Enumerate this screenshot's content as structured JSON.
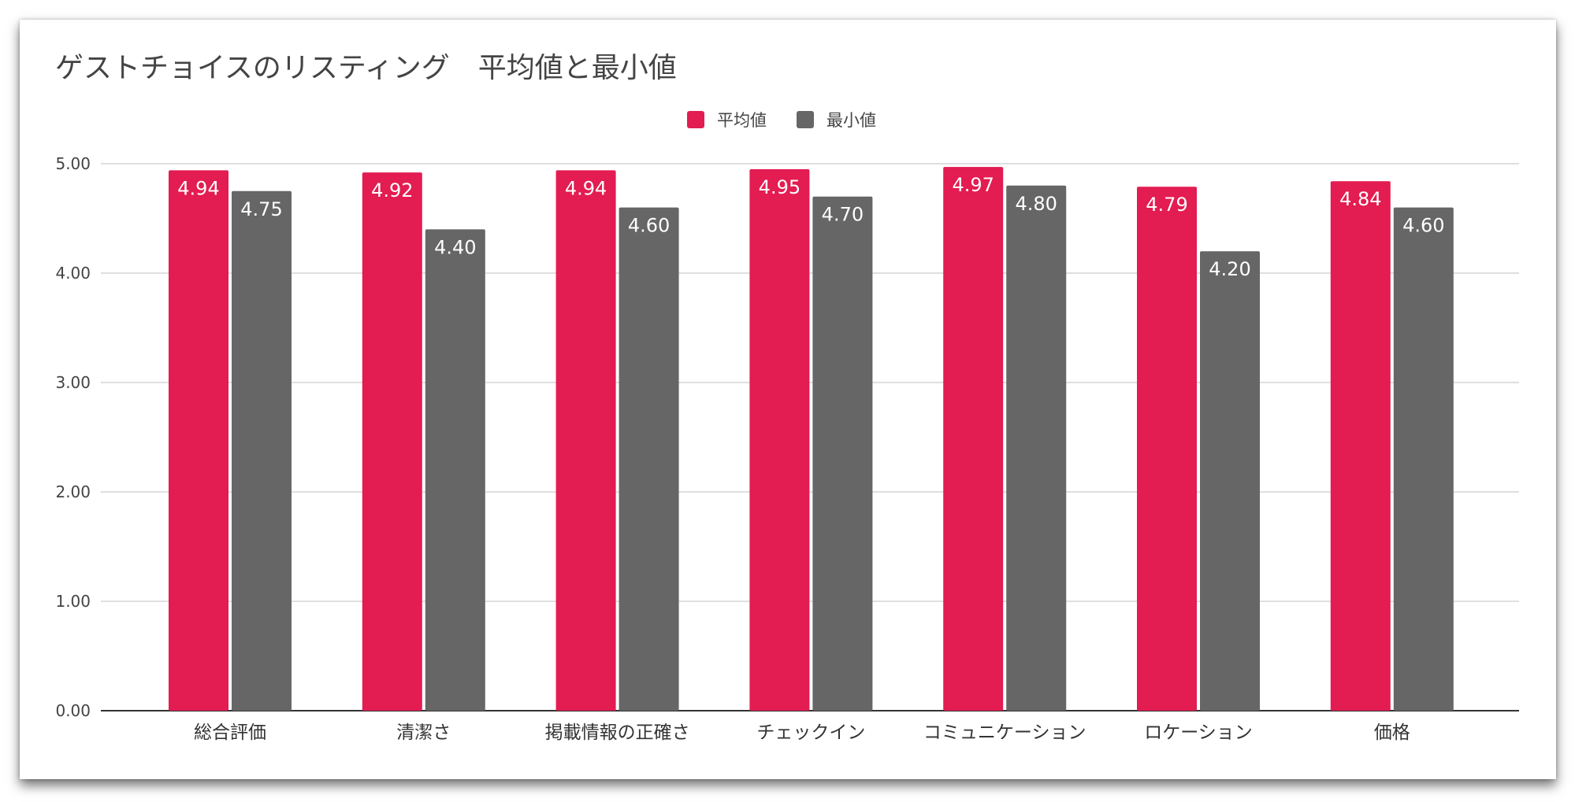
{
  "chart_data": {
    "type": "bar",
    "title": "ゲストチョイスのリスティング　平均値と最小値",
    "categories": [
      "総合評価",
      "清潔さ",
      "掲載情報の正確さ",
      "チェックイン",
      "コミュニケーション",
      "ロケーション",
      "価格"
    ],
    "series": [
      {
        "name": "平均値",
        "color": "#e31c51",
        "values": [
          4.94,
          4.92,
          4.94,
          4.95,
          4.97,
          4.79,
          4.84
        ],
        "labels": [
          "4.94",
          "4.92",
          "4.94",
          "4.95",
          "4.97",
          "4.79",
          "4.84"
        ]
      },
      {
        "name": "最小値",
        "color": "#666666",
        "values": [
          4.75,
          4.4,
          4.6,
          4.7,
          4.8,
          4.2,
          4.6
        ],
        "labels": [
          "4.75",
          "4.40",
          "4.60",
          "4.70",
          "4.80",
          "4.20",
          "4.60"
        ]
      }
    ],
    "ylim": [
      0,
      5
    ],
    "yticks": [
      "0.00",
      "1.00",
      "2.00",
      "3.00",
      "4.00",
      "5.00"
    ],
    "grid": true,
    "legend_position": "top-center",
    "xlabel": "",
    "ylabel": ""
  }
}
